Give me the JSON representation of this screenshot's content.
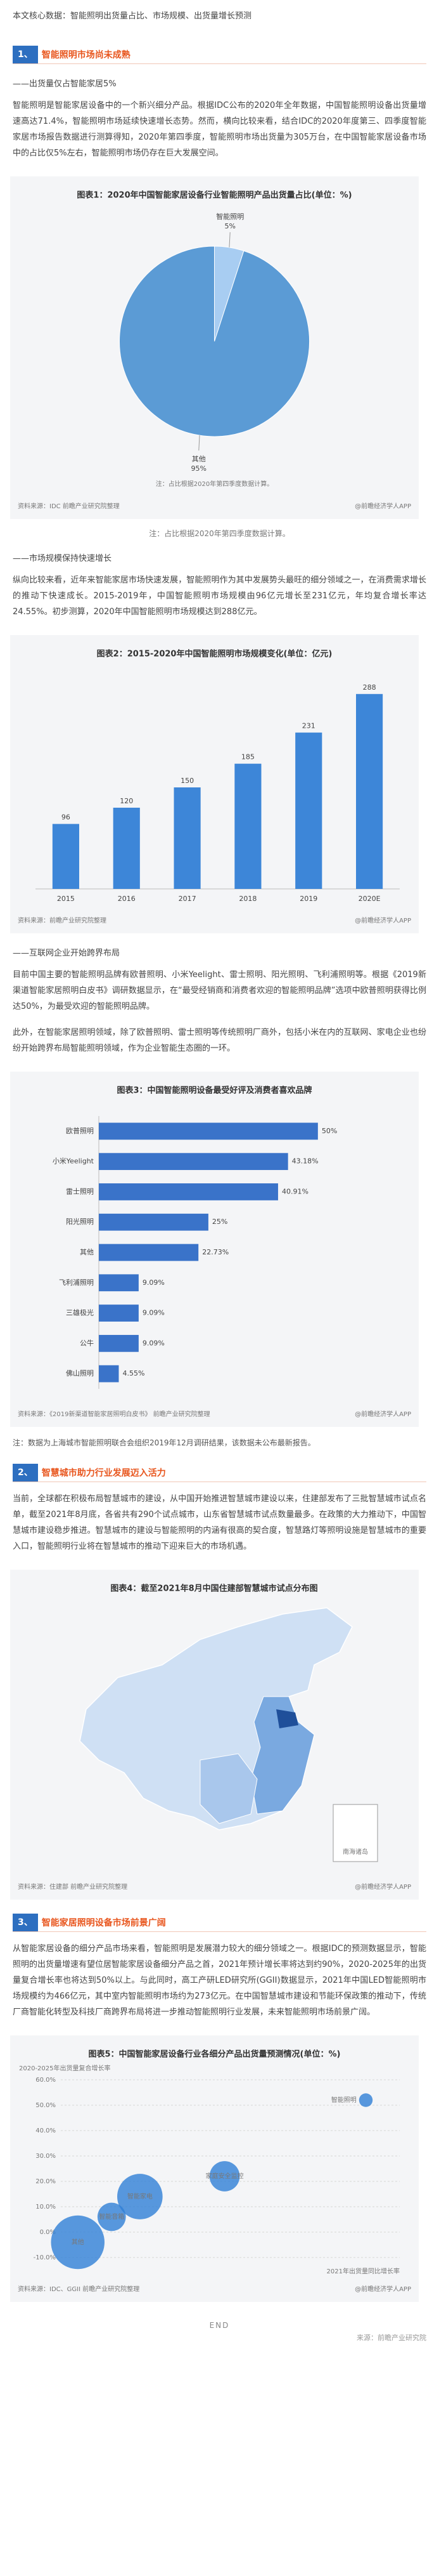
{
  "article": {
    "intro": "本文核心数据：智能照明出货量占比、市场规模、出货量增长预测",
    "sections": [
      {
        "number": "1、",
        "heading": "智能照明市场尚未成熟"
      },
      {
        "number": "2、",
        "heading": "智慧城市助力行业发展迈入活力"
      },
      {
        "number": "3、",
        "heading": "智能家居照明设备市场前景广阔"
      }
    ],
    "subheadings": [
      "——出货量仅占智能家居5%",
      "——市场规模保持快速增长",
      "——互联网企业开始跨界布局"
    ],
    "paragraphs": [
      "智能照明是智能家居设备中的一个新兴细分产品。根据IDC公布的2020年全年数据，中国智能照明设备出货量增速高达71.4%，智能照明市场延续快速增长态势。然而，横向比较来看，结合IDC的2020年度第三、四季度智能家居市场报告数据进行测算得知，2020年第四季度，智能照明市场出货量为305万台，在中国智能家居设备市场中的占比仅5%左右，智能照明市场仍存在巨大发展空间。",
      "纵向比较来看，近年来智能家居市场快速发展，智能照明作为其中发展势头最旺的细分领域之一，在消费需求增长的推动下快速成长。2015-2019年，中国智能照明市场规模由96亿元增长至231亿元，年均复合增长率达24.55%。初步测算，2020年中国智能照明市场规模达到288亿元。",
      "目前中国主要的智能照明品牌有欧普照明、小米Yeelight、雷士照明、阳光照明、飞利浦照明等。根据《2019新渠道智能家居照明白皮书》调研数据显示，在“最受经销商和消费者欢迎的智能照明品牌”选项中欧普照明获得比例达50%，为最受欢迎的智能照明品牌。",
      "此外，在智能家居照明领域，除了欧普照明、雷士照明等传统照明厂商外，包括小米在内的互联网、家电企业也纷纷开始跨界布局智能照明领域，作为企业智能生态圈的一环。",
      "当前，全球都在积极布局智慧城市的建设，从中国开始推进智慧城市建设以来，住建部发布了三批智慧城市试点名单，截至2021年8月底，各省共有290个试点城市，山东省智慧城市试点数量最多。在政策的大力推动下，中国智慧城市建设稳步推进。智慧城市的建设与智能照明的内涵有很高的契合度，智慧路灯等照明设施是智慧城市的重要入口，智能照明行业将在智慧城市的推动下迎来巨大的市场机遇。",
      "从智能家居设备的细分产品市场来看，智能照明是发展潜力较大的细分领域之一。根据IDC的预测数据显示，智能照明的出货量增速有望位居智能家居设备细分产品之首，2021年预计增长率将达到约90%，2020-2025年的出货量复合增长率也将达到50%以上。与此同时，高工产研LED研究所(GGII)数据显示，2021年中国LED智能照明市场规模约为466亿元，其中室内智能照明市场约为273亿元。在中国智慧城市建设和节能环保政策的推动下，传统厂商智能化转型及科技厂商跨界布局将进一步推动智能照明行业发展，未来智能照明市场前景广阔。"
    ],
    "caption": "注：占比根据2020年第四季度数据计算。",
    "note": "注：数据为上海城市智能照明联合会组织2019年12月调研结果，该数据未公布最新报告。",
    "map": {
      "title": "图表4：截至2021年8月中国住建部智慧城市试点分布图",
      "inset": "南海诸岛",
      "source": "资料来源：住建部 前瞻产业研究院整理",
      "brand": "@前瞻经济学人APP"
    },
    "end": "END",
    "end_source": "来源：前瞻产业研究院"
  },
  "chart_data": [
    {
      "type": "pie",
      "title": "图表1：2020年中国智能家居设备行业智能照明产品出货量占比(单位：%)",
      "categories": [
        "智能照明",
        "其他"
      ],
      "values": [
        5,
        95
      ],
      "value_labels": [
        "5%",
        "95%"
      ],
      "colors": [
        "#a8cdf2",
        "#5b9bd5"
      ],
      "note": "注：占比根据2020年第四季度数据计算。",
      "source": "资料来源：IDC 前瞻产业研究院整理",
      "brand": "@前瞻经济学人APP"
    },
    {
      "type": "bar",
      "title": "图表2：2015-2020年中国智能照明市场规模变化(单位：亿元)",
      "categories": [
        "2015",
        "2016",
        "2017",
        "2018",
        "2019",
        "2020E"
      ],
      "values": [
        96,
        120,
        150,
        185,
        231,
        288
      ],
      "color": "#3d86d8",
      "ylim": [
        0,
        300
      ],
      "source": "资料来源：前瞻产业研究院整理",
      "brand": "@前瞻经济学人APP"
    },
    {
      "type": "hbar",
      "title": "图表3：中国智能照明设备最受好评及消费者喜欢品牌",
      "categories": [
        "欧普照明",
        "小米Yeelight",
        "雷士照明",
        "阳光照明",
        "其他",
        "飞利浦照明",
        "三雄极光",
        "公牛",
        "佛山照明"
      ],
      "values": [
        50,
        43.18,
        40.91,
        25,
        22.73,
        9.09,
        9.09,
        9.09,
        4.55
      ],
      "value_labels": [
        "50%",
        "43.18%",
        "40.91%",
        "25%",
        "22.73%",
        "9.09%",
        "9.09%",
        "9.09%",
        "4.55%"
      ],
      "color": "#3a73c9",
      "xlim": [
        0,
        60
      ],
      "source": "资料来源：《2019新渠道智能家居照明白皮书》 前瞻产业研究院整理",
      "brand": "@前瞻经济学人APP"
    },
    {
      "type": "scatter",
      "title": "图表5：中国智能家居设备行业各细分产品出货量预测情况(单位：%)",
      "ylabel": "2020-2025年出货量复合增长率",
      "xlabel": "2021年出货量同比增长率",
      "categories": [
        "智能照明",
        "家庭安全监控",
        "智能家电",
        "智能音箱",
        "其他"
      ],
      "x": [
        88,
        38,
        8,
        -2,
        -14
      ],
      "values": [
        52,
        22,
        14,
        6,
        -4
      ],
      "sizes": [
        80,
        700,
        1800,
        600,
        2600
      ],
      "color": "#2f7fd6",
      "xlim": [
        -20,
        100
      ],
      "ylim": [
        -10,
        60
      ],
      "yticks": [
        {
          "value": -10,
          "label": "-10.0%"
        },
        {
          "value": 0,
          "label": "0.0%"
        },
        {
          "value": 10,
          "label": "10.0%"
        },
        {
          "value": 20,
          "label": "20.0%"
        },
        {
          "value": 30,
          "label": "30.0%"
        },
        {
          "value": 40,
          "label": "40.0%"
        },
        {
          "value": 50,
          "label": "50.0%"
        },
        {
          "value": 60,
          "label": "60.0%"
        }
      ],
      "source": "资料来源：IDC、GGII 前瞻产业研究院整理",
      "brand": "@前瞻经济学人APP"
    }
  ]
}
